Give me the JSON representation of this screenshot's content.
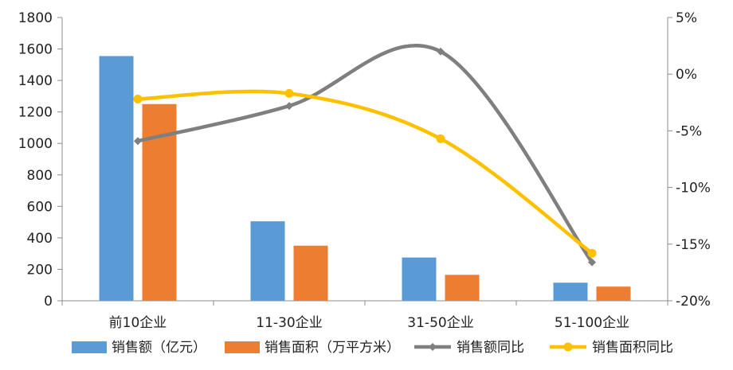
{
  "chart_data": {
    "type": "bar",
    "title": "",
    "categories": [
      "前10企业",
      "11-30企业",
      "31-50企业",
      "51-100企业"
    ],
    "series": [
      {
        "name": "销售额（亿元）",
        "kind": "bar",
        "axis": "left",
        "color": "#5B9BD5",
        "values": [
          1555,
          505,
          275,
          115
        ]
      },
      {
        "name": "销售面积（万平方米）",
        "kind": "bar",
        "axis": "left",
        "color": "#ED7D31",
        "values": [
          1250,
          350,
          165,
          90
        ]
      },
      {
        "name": "销售额同比",
        "kind": "line",
        "axis": "right",
        "color": "#7F7F7F",
        "marker": "diamond",
        "smooth": true,
        "values": [
          -5.9,
          -2.8,
          2.0,
          -16.6
        ]
      },
      {
        "name": "销售面积同比",
        "kind": "line",
        "axis": "right",
        "color": "#FFC000",
        "marker": "circle",
        "smooth": true,
        "values": [
          -2.2,
          -1.7,
          -5.7,
          -15.8
        ]
      }
    ],
    "y_left": {
      "ylim": [
        0,
        1800
      ],
      "ticks": [
        0,
        200,
        400,
        600,
        800,
        1000,
        1200,
        1400,
        1600,
        1800
      ],
      "tick_labels": [
        "0",
        "200",
        "400",
        "600",
        "800",
        "1000",
        "1200",
        "1400",
        "1600",
        "1800"
      ]
    },
    "y_right": {
      "ylim": [
        -20,
        5
      ],
      "ticks": [
        -20,
        -15,
        -10,
        -5,
        0,
        5
      ],
      "tick_labels": [
        "-20%",
        "-15%",
        "-10%",
        "-5%",
        "0%",
        "5%"
      ]
    },
    "grid": false,
    "legend": "bottom"
  }
}
